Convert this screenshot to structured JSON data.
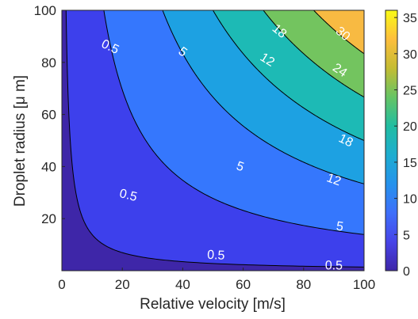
{
  "chart_data": {
    "type": "contourf",
    "title": "",
    "xlabel": "Relative velocity [m/s]",
    "ylabel": "Droplet radius [μ m]",
    "xlim": [
      0,
      100
    ],
    "ylim": [
      0,
      100
    ],
    "xticks": [
      "0",
      "20",
      "40",
      "60",
      "80",
      "100"
    ],
    "yticks": [
      "20",
      "40",
      "60",
      "80",
      "100"
    ],
    "colormap": "parula",
    "colorbar": {
      "range": [
        0,
        36
      ],
      "ticks": [
        "0",
        "5",
        "10",
        "15",
        "20",
        "25",
        "30",
        "35"
      ],
      "colors": [
        "#3e26a8",
        "#4744e8",
        "#3e6ffa",
        "#2592ec",
        "#1dadd0",
        "#21bda1",
        "#66c464",
        "#c4bc33",
        "#fdbe3d",
        "#f9fb15"
      ]
    },
    "field": "z = 0.0036 * velocity * radius",
    "levels": [
      0,
      0.5,
      5,
      12,
      18,
      24,
      30,
      36
    ],
    "level_fill_colors": [
      "#3e26a8",
      "#3d40ec",
      "#3577fd",
      "#1da1e2",
      "#1dbab5",
      "#73c45f",
      "#f8ba42"
    ],
    "max_region_color": "#f9fb15",
    "contour_labels": [
      {
        "text": "0.5",
        "x": 16,
        "y": 86
      },
      {
        "text": "0.5",
        "x": 22,
        "y": 29
      },
      {
        "text": "0.5",
        "x": 51,
        "y": 6
      },
      {
        "text": "0.5",
        "x": 90,
        "y": 2
      },
      {
        "text": "5",
        "x": 40,
        "y": 84
      },
      {
        "text": "5",
        "x": 59,
        "y": 40
      },
      {
        "text": "5",
        "x": 92,
        "y": 17
      },
      {
        "text": "12",
        "x": 68,
        "y": 81
      },
      {
        "text": "12",
        "x": 90,
        "y": 35
      },
      {
        "text": "18",
        "x": 72,
        "y": 92
      },
      {
        "text": "18",
        "x": 94,
        "y": 50
      },
      {
        "text": "24",
        "x": 92,
        "y": 77
      },
      {
        "text": "30",
        "x": 93,
        "y": 91
      }
    ]
  }
}
